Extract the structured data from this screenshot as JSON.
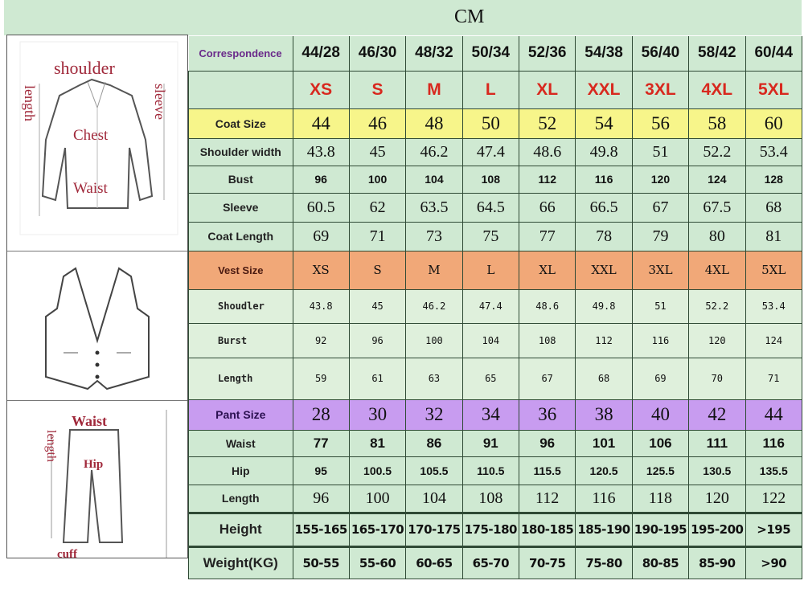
{
  "header": {
    "unit": "CM"
  },
  "illustrations": {
    "coat": {
      "labels": [
        "shoulder",
        "length",
        "sleeve",
        "Chest",
        "Waist"
      ]
    },
    "vest": {},
    "pants": {
      "labels": [
        "Waist",
        "length",
        "Hip",
        "cuff"
      ]
    }
  },
  "rows": [
    {
      "style": "corr",
      "label": "Correspondence",
      "values": [
        "44/28",
        "46/30",
        "48/32",
        "50/34",
        "52/36",
        "54/38",
        "56/40",
        "58/42",
        "60/44"
      ]
    },
    {
      "style": "letters",
      "label": "",
      "values": [
        "XS",
        "S",
        "M",
        "L",
        "XL",
        "XXL",
        "3XL",
        "4XL",
        "5XL"
      ]
    },
    {
      "style": "coat",
      "label": "Coat Size",
      "values": [
        "44",
        "46",
        "48",
        "50",
        "52",
        "54",
        "56",
        "58",
        "60"
      ]
    },
    {
      "style": "serif",
      "label": "Shoulder width",
      "values": [
        "43.8",
        "45",
        "46.2",
        "47.4",
        "48.6",
        "49.8",
        "51",
        "52.2",
        "53.4"
      ]
    },
    {
      "style": "sans",
      "label": "Bust",
      "values": [
        "96",
        "100",
        "104",
        "108",
        "112",
        "116",
        "120",
        "124",
        "128"
      ]
    },
    {
      "style": "serif",
      "label": "Sleeve",
      "values": [
        "60.5",
        "62",
        "63.5",
        "64.5",
        "66",
        "66.5",
        "67",
        "67.5",
        "68"
      ]
    },
    {
      "style": "serif",
      "label": "Coat Length",
      "values": [
        "69",
        "71",
        "73",
        "75",
        "77",
        "78",
        "79",
        "80",
        "81"
      ]
    },
    {
      "style": "vest",
      "label": "Vest Size",
      "values": [
        "XS",
        "S",
        "M",
        "L",
        "XL",
        "XXL",
        "3XL",
        "4XL",
        "5XL"
      ]
    },
    {
      "style": "vrow",
      "label": "Shoudler",
      "values": [
        "43.8",
        "45",
        "46.2",
        "47.4",
        "48.6",
        "49.8",
        "51",
        "52.2",
        "53.4"
      ]
    },
    {
      "style": "vrow",
      "label": "Burst",
      "values": [
        "92",
        "96",
        "100",
        "104",
        "108",
        "112",
        "116",
        "120",
        "124"
      ]
    },
    {
      "style": "vrow",
      "label": "Length",
      "values": [
        "59",
        "61",
        "63",
        "65",
        "67",
        "68",
        "69",
        "70",
        "71"
      ]
    },
    {
      "style": "pant",
      "label": "Pant Size",
      "values": [
        "28",
        "30",
        "32",
        "34",
        "36",
        "38",
        "40",
        "42",
        "44"
      ]
    },
    {
      "style": "pbold",
      "label": "Waist",
      "values": [
        "77",
        "81",
        "86",
        "91",
        "96",
        "101",
        "106",
        "111",
        "116"
      ]
    },
    {
      "style": "sans",
      "label": "Hip",
      "values": [
        "95",
        "100.5",
        "105.5",
        "110.5",
        "115.5",
        "120.5",
        "125.5",
        "130.5",
        "135.5"
      ]
    },
    {
      "style": "serif",
      "label": "Length",
      "values": [
        "96",
        "100",
        "104",
        "108",
        "112",
        "116",
        "118",
        "120",
        "122"
      ]
    },
    {
      "style": "hw",
      "label": "Height",
      "values": [
        "155-165",
        "165-170",
        "170-175",
        "175-180",
        "180-185",
        "185-190",
        "190-195",
        "195-200",
        ">195"
      ]
    },
    {
      "style": "hw",
      "label": "Weight(KG)",
      "values": [
        "50-55",
        "55-60",
        "60-65",
        "65-70",
        "70-75",
        "75-80",
        "80-85",
        "85-90",
        ">90"
      ]
    }
  ],
  "colors": {
    "green": "#cfe9d2",
    "coat": "#f7f58a",
    "vest": "#f1a878",
    "pant": "#c89cf0",
    "size_letters": "#d8281e"
  }
}
